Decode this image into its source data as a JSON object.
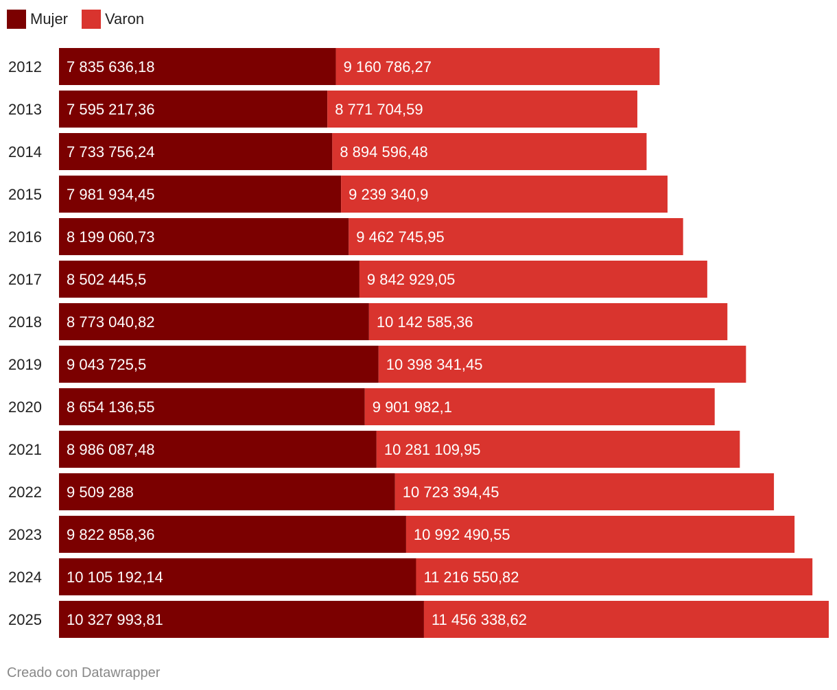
{
  "chart_data": {
    "type": "bar",
    "orientation": "horizontal",
    "stacked": true,
    "categories": [
      "2012",
      "2013",
      "2014",
      "2015",
      "2016",
      "2017",
      "2018",
      "2019",
      "2020",
      "2021",
      "2022",
      "2023",
      "2024",
      "2025"
    ],
    "series": [
      {
        "name": "Mujer",
        "color": "#7b0000",
        "values": [
          7835636.18,
          7595217.36,
          7733756.24,
          7981934.45,
          8199060.73,
          8502445.5,
          8773040.82,
          9043725.5,
          8654136.55,
          8986087.48,
          9509288,
          9822858.36,
          10105192.14,
          10327993.81
        ],
        "labels": [
          "7 835 636,18",
          "7 595 217,36",
          "7 733 756,24",
          "7 981 934,45",
          "8 199 060,73",
          "8 502 445,5",
          "8 773 040,82",
          "9 043 725,5",
          "8 654 136,55",
          "8 986 087,48",
          "9 509 288",
          "9 822 858,36",
          "10 105 192,14",
          "10 327 993,81"
        ]
      },
      {
        "name": "Varon",
        "color": "#d9342e",
        "values": [
          9160786.27,
          8771704.59,
          8894596.48,
          9239340.9,
          9462745.95,
          9842929.05,
          10142585.36,
          10398341.45,
          9901982.1,
          10281109.95,
          10723394.45,
          10992490.55,
          11216550.82,
          11456338.62
        ],
        "labels": [
          "9 160 786,27",
          "8 771 704,59",
          "8 894 596,48",
          "9 239 340,9",
          "9 462 745,95",
          "9 842 929,05",
          "10 142 585,36",
          "10 398 341,45",
          "9 901 982,1",
          "10 281 109,95",
          "10 723 394,45",
          "10 992 490,55",
          "11 216 550,82",
          "11 456 338,62"
        ]
      }
    ],
    "legend_position": "top-left",
    "grid": false
  },
  "footer": {
    "credit": "Creado con Datawrapper"
  }
}
